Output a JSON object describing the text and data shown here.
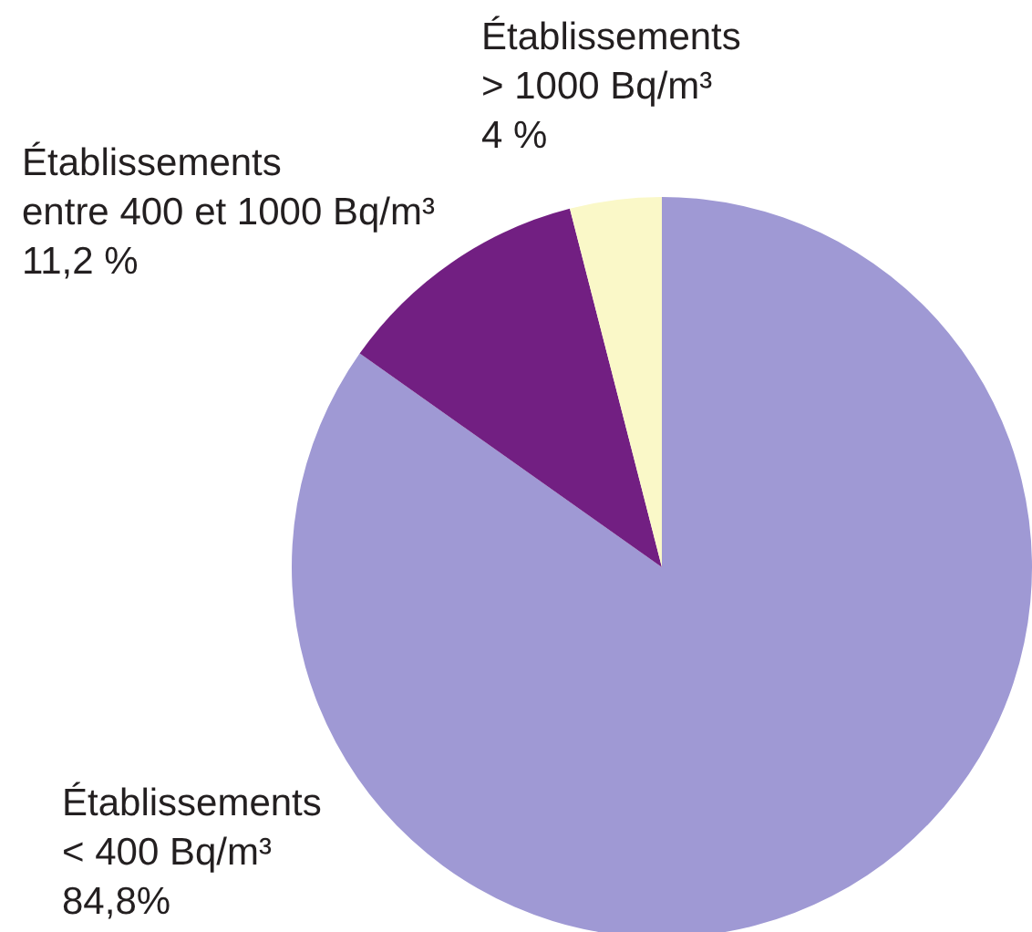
{
  "chart_data": {
    "type": "pie",
    "categories": [
      "Établissements < 400 Bq/m³",
      "Établissements entre 400 et 1000 Bq/m³",
      "Établissements > 1000 Bq/m³"
    ],
    "values": [
      84.8,
      11.2,
      4
    ],
    "colors": [
      "#9f99d4",
      "#721f82",
      "#faf8c8"
    ],
    "value_labels": [
      "84,8%",
      "11,2 %",
      "4 %"
    ]
  }
}
